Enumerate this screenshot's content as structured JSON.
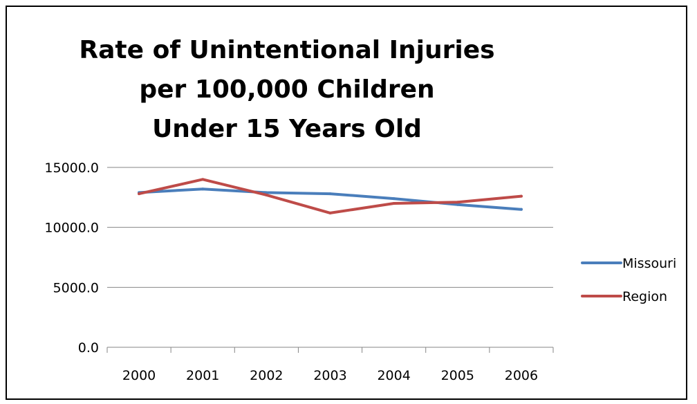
{
  "chart_data": {
    "type": "line",
    "title_lines": [
      "Rate of Unintentional Injuries",
      "per 100,000 Children",
      "Under 15 Years Old"
    ],
    "categories": [
      "2000",
      "2001",
      "2002",
      "2003",
      "2004",
      "2005",
      "2006"
    ],
    "y_tick_labels": [
      "15000.0",
      "10000.0",
      "5000.0",
      "0.0"
    ],
    "y_ticks": [
      15000,
      10000,
      5000,
      0
    ],
    "ylim": [
      0,
      15000
    ],
    "grid": true,
    "legend_position": "right",
    "series": [
      {
        "name": "Missouri",
        "color": "#4a7ebb",
        "values": [
          12900,
          13200,
          12900,
          12800,
          12400,
          11900,
          11500
        ]
      },
      {
        "name": "Region",
        "color": "#be4b48",
        "values": [
          12800,
          14000,
          12700,
          11200,
          12000,
          12100,
          12600
        ]
      }
    ]
  }
}
